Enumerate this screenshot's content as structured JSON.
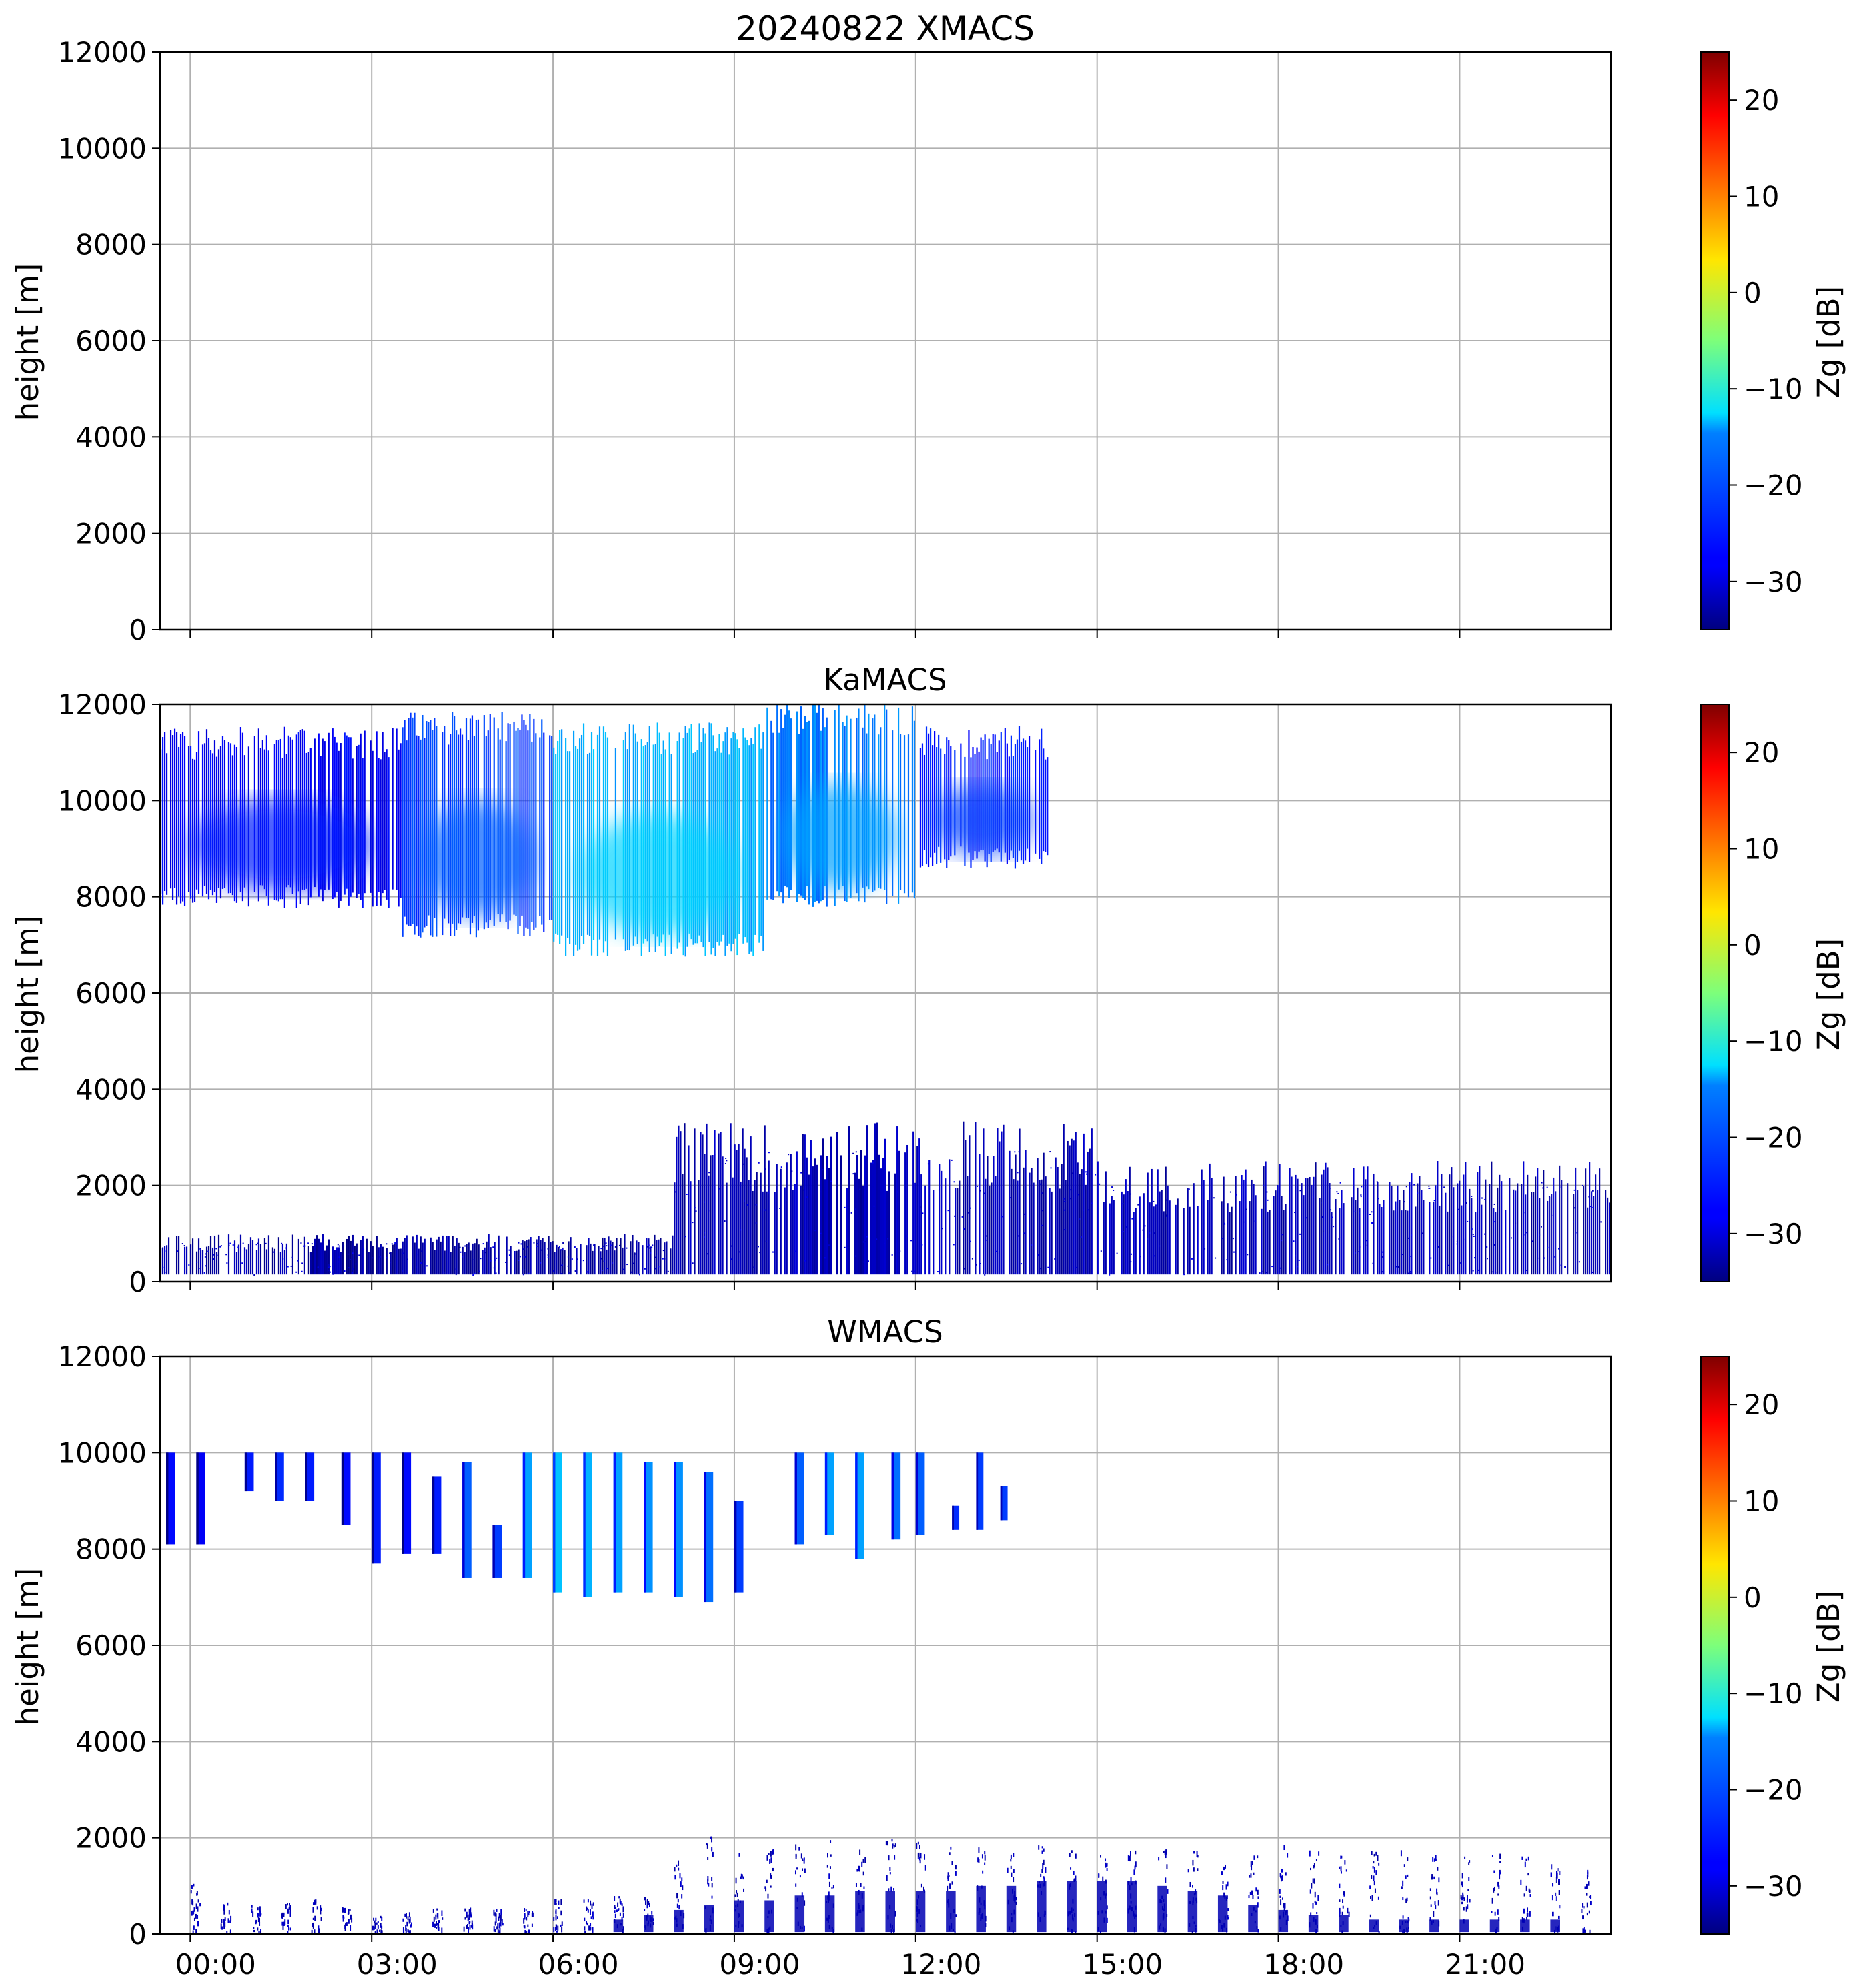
{
  "chart_data": [
    {
      "type": "heatmap",
      "title": "20240822 XMACS",
      "ylabel": "height [m]",
      "ylim": [
        0,
        12000
      ],
      "yticks": [
        0,
        2000,
        4000,
        6000,
        8000,
        10000,
        12000
      ],
      "xlim_hours": [
        -0.5,
        23.5
      ],
      "xticks_hours": [
        0,
        3,
        6,
        9,
        12,
        15,
        18,
        21
      ],
      "xtick_labels": [],
      "grid": true,
      "colorbar": {
        "label": "Zg [dB]",
        "range": [
          -35,
          25
        ],
        "ticks": [
          -30,
          -20,
          -10,
          0,
          10,
          20
        ],
        "tick_labels": [
          "−30",
          "−20",
          "−10",
          "0",
          "10",
          "20"
        ],
        "colormap": "jet"
      },
      "regions": []
    },
    {
      "type": "heatmap",
      "title": "KaMACS",
      "ylabel": "height [m]",
      "ylim": [
        0,
        12000
      ],
      "yticks": [
        0,
        2000,
        4000,
        6000,
        8000,
        10000,
        12000
      ],
      "xlim_hours": [
        -0.5,
        23.5
      ],
      "xticks_hours": [
        0,
        3,
        6,
        9,
        12,
        15,
        18,
        21
      ],
      "xtick_labels": [],
      "grid": true,
      "colorbar": {
        "label": "Zg [dB]",
        "range": [
          -35,
          25
        ],
        "ticks": [
          -30,
          -20,
          -10,
          0,
          10,
          20
        ],
        "tick_labels": [
          "−30",
          "−20",
          "−10",
          "0",
          "10",
          "20"
        ],
        "colormap": "jet"
      },
      "regions": [
        {
          "kind": "cirrus",
          "t_start": -0.5,
          "t_end": 3.5,
          "base_m": 7900,
          "top_m": 11300,
          "dbz_core": -26
        },
        {
          "kind": "cirrus",
          "t_start": 3.5,
          "t_end": 6.0,
          "base_m": 7300,
          "top_m": 11600,
          "dbz_core": -22
        },
        {
          "kind": "cirrus",
          "t_start": 6.0,
          "t_end": 9.5,
          "base_m": 6900,
          "top_m": 11400,
          "dbz_core": -15
        },
        {
          "kind": "cirrus",
          "t_start": 9.5,
          "t_end": 12.0,
          "base_m": 7900,
          "top_m": 11800,
          "dbz_core": -18
        },
        {
          "kind": "cirrus",
          "t_start": 12.0,
          "t_end": 14.2,
          "base_m": 8700,
          "top_m": 11300,
          "dbz_core": -24
        },
        {
          "kind": "boundary",
          "t_start": -0.5,
          "t_end": 8.0,
          "base_m": 150,
          "top_m": 800,
          "dbz_core": -31
        },
        {
          "kind": "boundary",
          "t_start": 8.0,
          "t_end": 15.0,
          "base_m": 150,
          "top_m": 2600,
          "dbz_core": -30
        },
        {
          "kind": "boundary",
          "t_start": 15.0,
          "t_end": 23.5,
          "base_m": 150,
          "top_m": 2000,
          "dbz_core": -30
        }
      ]
    },
    {
      "type": "heatmap",
      "title": "WMACS",
      "ylabel": "height [m]",
      "ylim": [
        0,
        12000
      ],
      "yticks": [
        0,
        2000,
        4000,
        6000,
        8000,
        10000,
        12000
      ],
      "xlim_hours": [
        -0.5,
        23.5
      ],
      "xticks_hours": [
        0,
        3,
        6,
        9,
        12,
        15,
        18,
        21
      ],
      "xtick_labels": [
        "00:00",
        "03:00",
        "06:00",
        "09:00",
        "12:00",
        "15:00",
        "18:00",
        "21:00"
      ],
      "grid": true,
      "colorbar": {
        "label": "Zg [dB]",
        "range": [
          -35,
          25
        ],
        "ticks": [
          -30,
          -20,
          -10,
          0,
          10,
          20
        ],
        "tick_labels": [
          "−30",
          "−20",
          "−10",
          "0",
          "10",
          "20"
        ],
        "colormap": "jet"
      },
      "regions": [],
      "profile_segments": [
        {
          "t": -0.4,
          "w": 0.15,
          "base_m": 8100,
          "top_m": 10000,
          "dbz": -27
        },
        {
          "t": 0.1,
          "w": 0.15,
          "base_m": 8100,
          "top_m": 10000,
          "dbz": -28
        },
        {
          "t": 0.9,
          "w": 0.15,
          "base_m": 9200,
          "top_m": 10000,
          "dbz": -26
        },
        {
          "t": 1.4,
          "w": 0.15,
          "base_m": 9000,
          "top_m": 10000,
          "dbz": -25
        },
        {
          "t": 1.9,
          "w": 0.15,
          "base_m": 9000,
          "top_m": 10000,
          "dbz": -26
        },
        {
          "t": 2.5,
          "w": 0.15,
          "base_m": 8500,
          "top_m": 10000,
          "dbz": -27
        },
        {
          "t": 3.0,
          "w": 0.15,
          "base_m": 7700,
          "top_m": 10000,
          "dbz": -26
        },
        {
          "t": 3.5,
          "w": 0.15,
          "base_m": 7900,
          "top_m": 10000,
          "dbz": -27
        },
        {
          "t": 4.0,
          "w": 0.15,
          "base_m": 7900,
          "top_m": 9500,
          "dbz": -26
        },
        {
          "t": 4.5,
          "w": 0.15,
          "base_m": 7400,
          "top_m": 9800,
          "dbz": -22
        },
        {
          "t": 5.0,
          "w": 0.15,
          "base_m": 7400,
          "top_m": 8500,
          "dbz": -24
        },
        {
          "t": 5.5,
          "w": 0.15,
          "base_m": 7400,
          "top_m": 10000,
          "dbz": -18
        },
        {
          "t": 6.0,
          "w": 0.15,
          "base_m": 7100,
          "top_m": 10000,
          "dbz": -16
        },
        {
          "t": 6.5,
          "w": 0.15,
          "base_m": 7000,
          "top_m": 10000,
          "dbz": -17
        },
        {
          "t": 7.0,
          "w": 0.15,
          "base_m": 7100,
          "top_m": 10000,
          "dbz": -18
        },
        {
          "t": 7.5,
          "w": 0.15,
          "base_m": 7100,
          "top_m": 9800,
          "dbz": -19
        },
        {
          "t": 8.0,
          "w": 0.15,
          "base_m": 7000,
          "top_m": 9800,
          "dbz": -19
        },
        {
          "t": 8.5,
          "w": 0.15,
          "base_m": 6900,
          "top_m": 9600,
          "dbz": -21
        },
        {
          "t": 9.0,
          "w": 0.15,
          "base_m": 7100,
          "top_m": 9000,
          "dbz": -24
        },
        {
          "t": 10.0,
          "w": 0.15,
          "base_m": 8100,
          "top_m": 10000,
          "dbz": -22
        },
        {
          "t": 10.5,
          "w": 0.15,
          "base_m": 8300,
          "top_m": 10000,
          "dbz": -18
        },
        {
          "t": 11.0,
          "w": 0.15,
          "base_m": 7800,
          "top_m": 10000,
          "dbz": -18
        },
        {
          "t": 11.6,
          "w": 0.15,
          "base_m": 8200,
          "top_m": 10000,
          "dbz": -21
        },
        {
          "t": 12.0,
          "w": 0.15,
          "base_m": 8300,
          "top_m": 10000,
          "dbz": -22
        },
        {
          "t": 12.6,
          "w": 0.12,
          "base_m": 8400,
          "top_m": 8900,
          "dbz": -25
        },
        {
          "t": 13.0,
          "w": 0.12,
          "base_m": 8400,
          "top_m": 10000,
          "dbz": -24
        },
        {
          "t": 13.4,
          "w": 0.12,
          "base_m": 8600,
          "top_m": 9300,
          "dbz": -24
        }
      ],
      "lowlevel_top_m": [
        1000,
        600,
        600,
        600,
        700,
        500,
        400,
        400,
        500,
        500,
        500,
        500,
        700,
        700,
        800,
        800,
        1500,
        2000,
        1800,
        1800,
        1900,
        1900,
        1900,
        2000,
        1900,
        1800,
        1800,
        1700,
        1800,
        1700,
        1600,
        1700,
        1700,
        1700,
        1600,
        1600,
        1800,
        1700,
        1600,
        1700,
        1700,
        1600,
        1600,
        1700,
        1600,
        1500,
        1300,
        1300
      ],
      "lowlevel_dense_top_m": [
        0,
        0,
        0,
        0,
        0,
        0,
        0,
        0,
        0,
        0,
        0,
        0,
        0,
        0,
        300,
        400,
        500,
        600,
        700,
        700,
        800,
        800,
        900,
        900,
        900,
        900,
        1000,
        1000,
        1100,
        1100,
        1100,
        1100,
        1000,
        900,
        800,
        600,
        500,
        400,
        400,
        300,
        300,
        300,
        300,
        300,
        300,
        300,
        0,
        0
      ]
    }
  ]
}
